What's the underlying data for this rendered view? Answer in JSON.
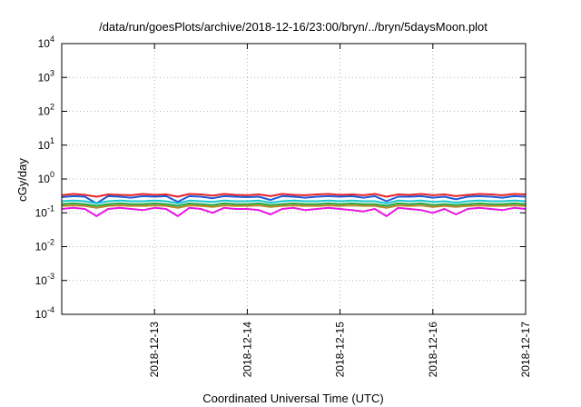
{
  "chart_data": {
    "type": "line",
    "title": "/data/run/goesPlots/archive/2018-12-16/23:00/bryn/../bryn/5daysMoon.plot",
    "xlabel": "Coordinated Universal Time (UTC)",
    "ylabel": "cGy/day",
    "yscale": "log",
    "ylim": [
      0.0001,
      10000
    ],
    "xlim": [
      "2018-12-12T00:00",
      "2018-12-17T00:00"
    ],
    "y_ticks": [
      {
        "base": "10",
        "exp": "-4"
      },
      {
        "base": "10",
        "exp": "-3"
      },
      {
        "base": "10",
        "exp": "-2"
      },
      {
        "base": "10",
        "exp": "-1"
      },
      {
        "base": "10",
        "exp": "0"
      },
      {
        "base": "10",
        "exp": "1"
      },
      {
        "base": "10",
        "exp": "2"
      },
      {
        "base": "10",
        "exp": "3"
      },
      {
        "base": "10",
        "exp": "4"
      }
    ],
    "x_ticks": [
      "2018-12-13",
      "2018-12-14",
      "2018-12-15",
      "2018-12-16",
      "2018-12-17"
    ],
    "grid": true,
    "legend": "none",
    "x": [
      "2018-12-12T00:00",
      "2018-12-12T03:00",
      "2018-12-12T06:00",
      "2018-12-12T09:00",
      "2018-12-12T12:00",
      "2018-12-12T15:00",
      "2018-12-12T18:00",
      "2018-12-12T21:00",
      "2018-12-13T00:00",
      "2018-12-13T03:00",
      "2018-12-13T06:00",
      "2018-12-13T09:00",
      "2018-12-13T12:00",
      "2018-12-13T15:00",
      "2018-12-13T18:00",
      "2018-12-13T21:00",
      "2018-12-14T00:00",
      "2018-12-14T03:00",
      "2018-12-14T06:00",
      "2018-12-14T09:00",
      "2018-12-14T12:00",
      "2018-12-14T15:00",
      "2018-12-14T18:00",
      "2018-12-14T21:00",
      "2018-12-15T00:00",
      "2018-12-15T03:00",
      "2018-12-15T06:00",
      "2018-12-15T09:00",
      "2018-12-15T12:00",
      "2018-12-15T15:00",
      "2018-12-15T18:00",
      "2018-12-15T21:00",
      "2018-12-16T00:00",
      "2018-12-16T03:00",
      "2018-12-16T06:00",
      "2018-12-16T09:00",
      "2018-12-16T12:00",
      "2018-12-16T15:00",
      "2018-12-16T18:00",
      "2018-12-16T21:00",
      "2018-12-17T00:00"
    ],
    "series": [
      {
        "color": "#e8242a",
        "values": [
          0.33,
          0.36,
          0.34,
          0.3,
          0.35,
          0.34,
          0.33,
          0.36,
          0.34,
          0.35,
          0.3,
          0.36,
          0.35,
          0.32,
          0.36,
          0.34,
          0.33,
          0.35,
          0.31,
          0.36,
          0.34,
          0.33,
          0.35,
          0.36,
          0.34,
          0.35,
          0.33,
          0.36,
          0.3,
          0.35,
          0.34,
          0.36,
          0.33,
          0.35,
          0.31,
          0.34,
          0.36,
          0.35,
          0.33,
          0.36,
          0.35
        ]
      },
      {
        "color": "#1f5bd9",
        "values": [
          0.29,
          0.31,
          0.3,
          0.19,
          0.31,
          0.3,
          0.28,
          0.31,
          0.3,
          0.31,
          0.21,
          0.31,
          0.3,
          0.27,
          0.31,
          0.3,
          0.29,
          0.3,
          0.24,
          0.31,
          0.3,
          0.28,
          0.3,
          0.31,
          0.3,
          0.31,
          0.28,
          0.31,
          0.22,
          0.3,
          0.3,
          0.31,
          0.28,
          0.3,
          0.25,
          0.3,
          0.31,
          0.3,
          0.28,
          0.31,
          0.3
        ]
      },
      {
        "color": "#19c7cf",
        "values": [
          0.22,
          0.23,
          0.22,
          0.19,
          0.22,
          0.23,
          0.22,
          0.22,
          0.23,
          0.22,
          0.19,
          0.23,
          0.22,
          0.21,
          0.23,
          0.22,
          0.22,
          0.23,
          0.2,
          0.22,
          0.23,
          0.22,
          0.22,
          0.23,
          0.22,
          0.23,
          0.22,
          0.22,
          0.19,
          0.23,
          0.22,
          0.23,
          0.21,
          0.22,
          0.2,
          0.22,
          0.23,
          0.22,
          0.22,
          0.23,
          0.22
        ]
      },
      {
        "color": "#22aa44",
        "values": [
          0.18,
          0.19,
          0.18,
          0.16,
          0.18,
          0.19,
          0.18,
          0.18,
          0.19,
          0.18,
          0.16,
          0.19,
          0.18,
          0.17,
          0.19,
          0.18,
          0.18,
          0.19,
          0.17,
          0.18,
          0.19,
          0.18,
          0.18,
          0.19,
          0.18,
          0.19,
          0.18,
          0.18,
          0.16,
          0.19,
          0.18,
          0.19,
          0.17,
          0.18,
          0.17,
          0.18,
          0.19,
          0.18,
          0.18,
          0.19,
          0.18
        ]
      },
      {
        "color": "#b8862a",
        "values": [
          0.16,
          0.165,
          0.16,
          0.14,
          0.16,
          0.165,
          0.16,
          0.16,
          0.165,
          0.16,
          0.14,
          0.165,
          0.16,
          0.15,
          0.165,
          0.16,
          0.16,
          0.165,
          0.15,
          0.16,
          0.165,
          0.16,
          0.16,
          0.165,
          0.16,
          0.165,
          0.16,
          0.16,
          0.14,
          0.165,
          0.16,
          0.165,
          0.15,
          0.16,
          0.15,
          0.16,
          0.165,
          0.16,
          0.16,
          0.165,
          0.16
        ]
      },
      {
        "color": "#e817e0",
        "values": [
          0.13,
          0.14,
          0.13,
          0.08,
          0.13,
          0.14,
          0.13,
          0.12,
          0.14,
          0.13,
          0.08,
          0.14,
          0.13,
          0.1,
          0.14,
          0.13,
          0.13,
          0.12,
          0.09,
          0.13,
          0.14,
          0.12,
          0.13,
          0.14,
          0.13,
          0.12,
          0.11,
          0.13,
          0.08,
          0.14,
          0.13,
          0.12,
          0.1,
          0.13,
          0.09,
          0.13,
          0.14,
          0.13,
          0.12,
          0.14,
          0.13
        ]
      }
    ]
  }
}
